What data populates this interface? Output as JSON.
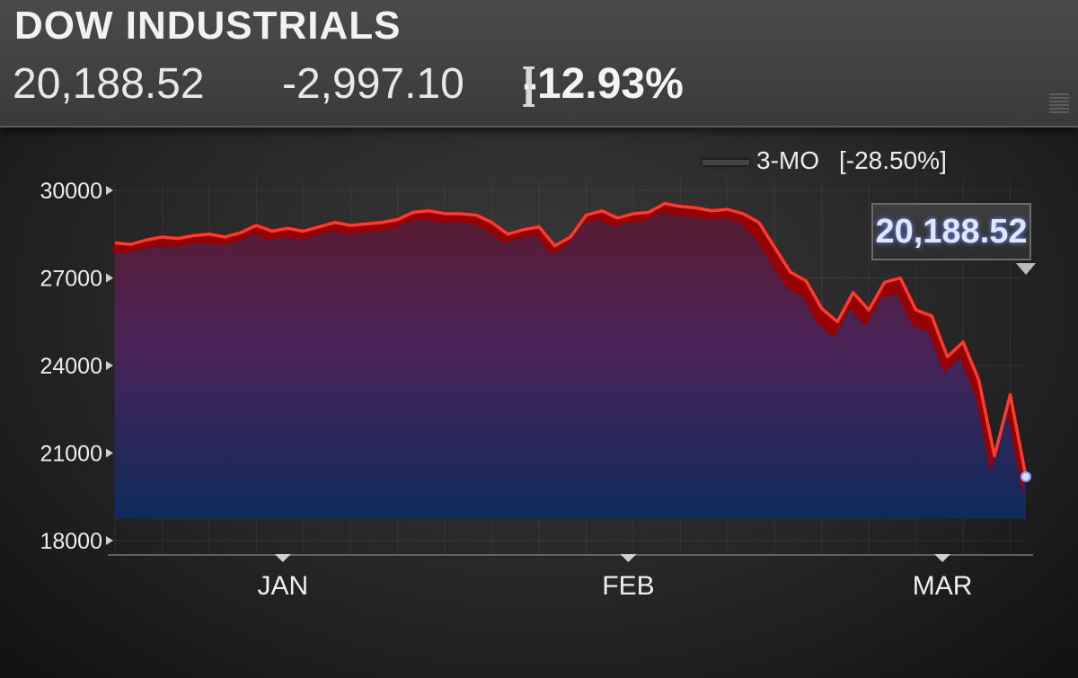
{
  "header": {
    "title": "DOW INDUSTRIALS",
    "price": "20,188.52",
    "change": "-2,997.10",
    "pct_open": "[",
    "pct_value": "-12.93%",
    "pct_close": "]"
  },
  "legend": {
    "period": "3-MO",
    "period_change": "[-28.50%]"
  },
  "callout": {
    "value": "20,188.52"
  },
  "colors": {
    "line": "#ff3b2f",
    "ribbon": "#b30000",
    "fill_top": "#5a1a2e",
    "fill_mid": "#4a2358",
    "fill_bottom": "#0f2a5c"
  },
  "chart_data": {
    "type": "area",
    "ylim": [
      18000,
      30500
    ],
    "yticks": [
      30000,
      27000,
      24000,
      21000,
      18000
    ],
    "ytick_labels": [
      "30000",
      "27000",
      "24000",
      "21000",
      "18000"
    ],
    "xlabels": [
      {
        "label": "JAN",
        "index": 10
      },
      {
        "label": "FEB",
        "index": 32
      },
      {
        "label": "MAR",
        "index": 52
      }
    ],
    "series": [
      {
        "values": [
          28200,
          28150,
          28300,
          28400,
          28350,
          28450,
          28500,
          28400,
          28550,
          28800,
          28600,
          28700,
          28600,
          28750,
          28900,
          28800,
          28850,
          28900,
          29000,
          29250,
          29300,
          29200,
          29200,
          29150,
          28900,
          28500,
          28650,
          28750,
          28100,
          28400,
          29150,
          29300,
          29050,
          29200,
          29250,
          29550,
          29450,
          29400,
          29300,
          29350,
          29200,
          28900,
          28050,
          27200,
          26900,
          25950,
          25500,
          26500,
          25900,
          26850,
          27000,
          25900,
          25700,
          24300,
          24800,
          23500,
          20900,
          23000,
          20188.52
        ]
      }
    ]
  }
}
